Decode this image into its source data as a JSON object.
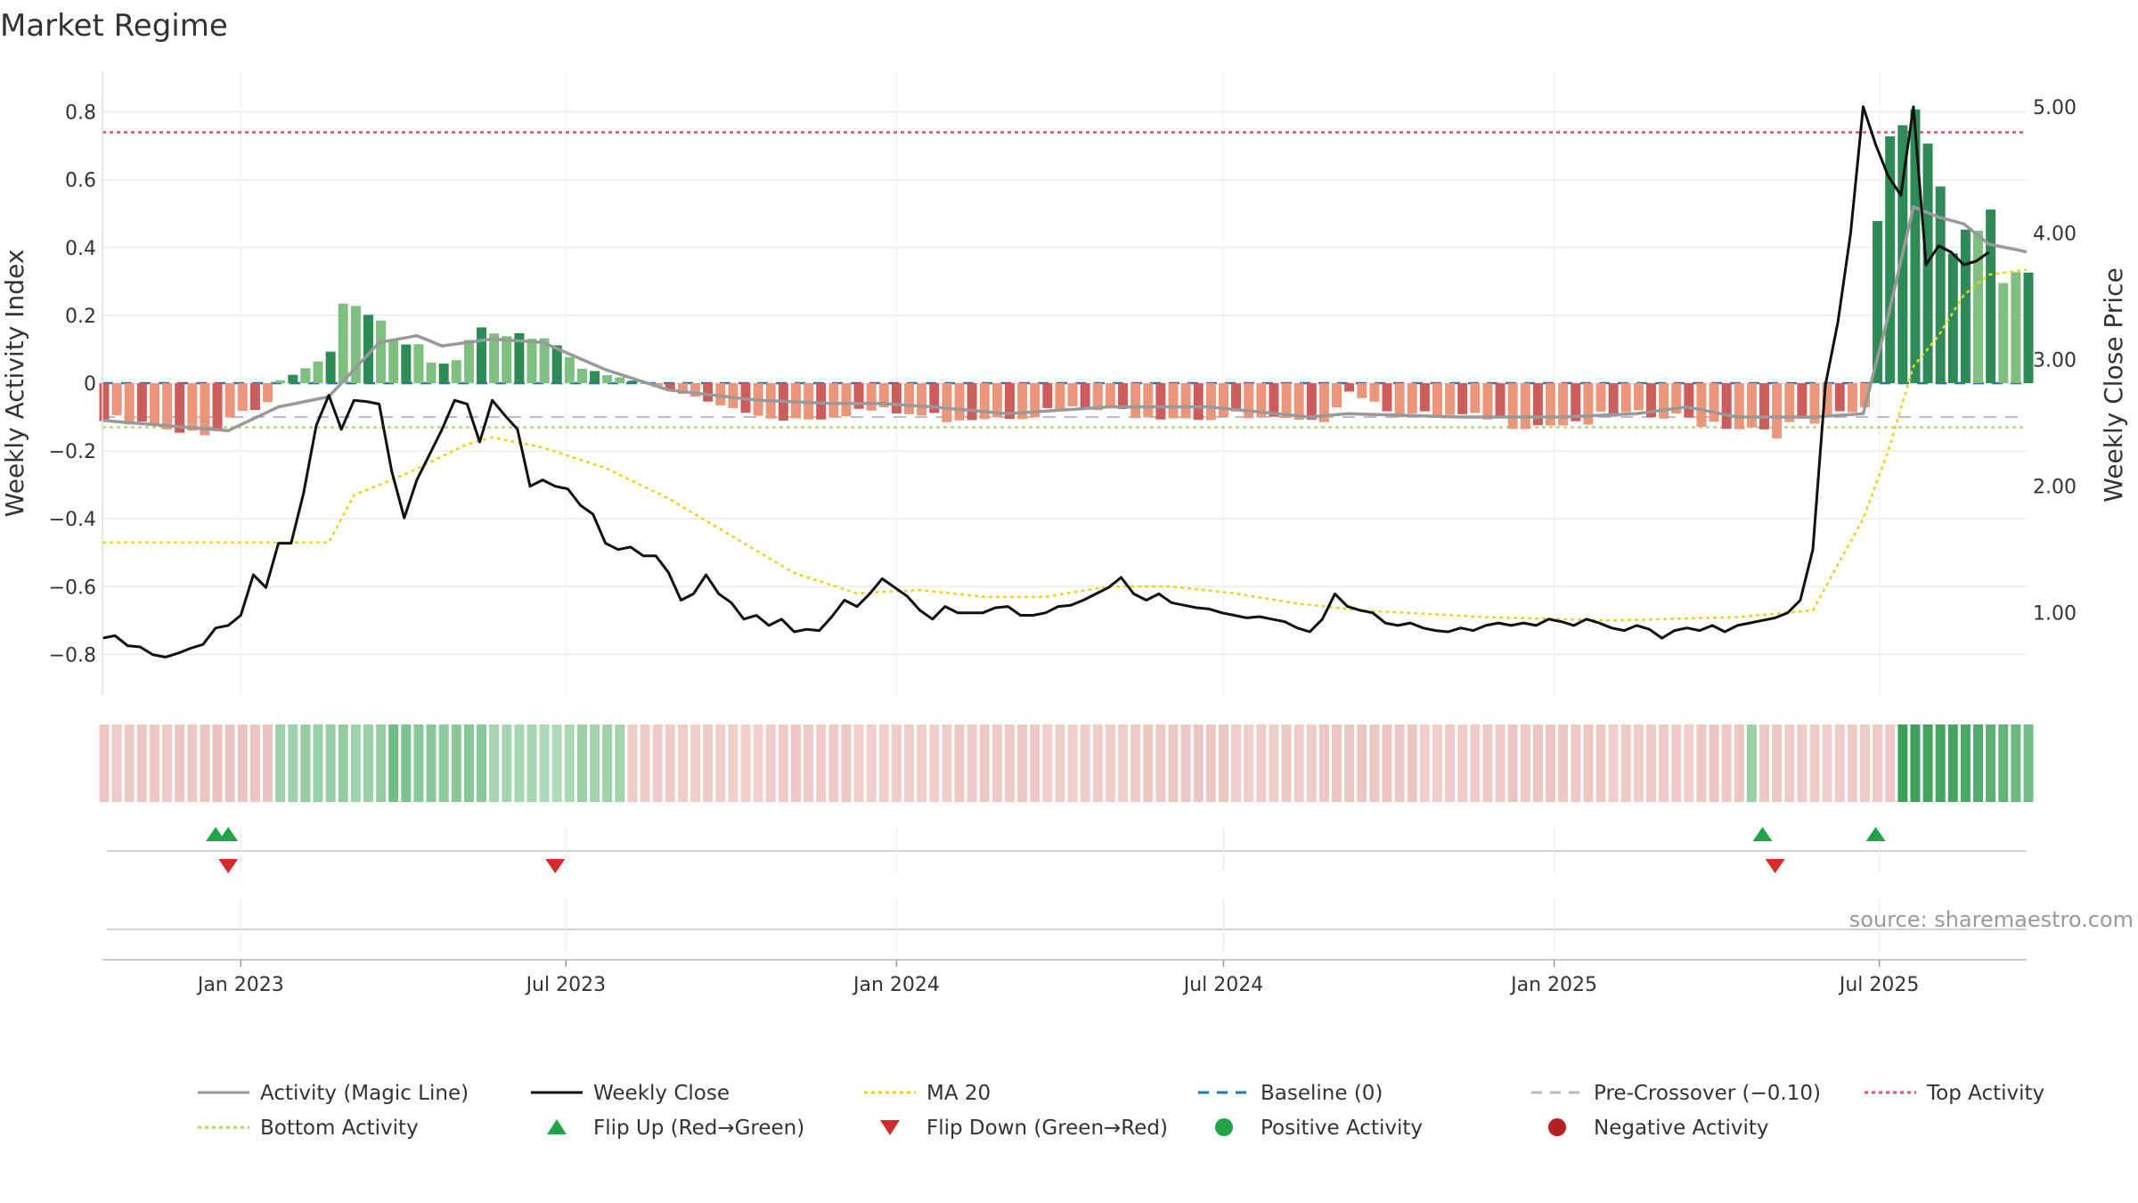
{
  "chart_data": {
    "type": "bar",
    "title": "Market Regime",
    "ylabel": "Weekly Activity Index",
    "ylabel_right": "Weekly Close Price",
    "source": "source: sharemaestro.com",
    "ylim": [
      -0.92,
      0.92
    ],
    "ylim_right": [
      0.35,
      5.28
    ],
    "xlim": [
      "2022-10-16",
      "2025-09-21"
    ],
    "y_ticks": [
      0.8,
      0.6,
      0.4,
      0.2,
      0,
      -0.2,
      -0.4,
      -0.6,
      -0.8
    ],
    "y_tick_labels": [
      "0.8",
      "0.6",
      "0.4",
      "0.2",
      "0",
      "−0.2",
      "−0.4",
      "−0.6",
      "−0.8"
    ],
    "y_right_ticks": [
      5.0,
      4.0,
      3.0,
      2.0,
      1.0
    ],
    "y_right_tick_labels": [
      "5.00",
      "4.00",
      "3.00",
      "2.00",
      "1.00"
    ],
    "x_ticks": [
      "2023-01-01",
      "2023-07-01",
      "2024-01-01",
      "2024-07-01",
      "2025-01-01",
      "2025-07-01"
    ],
    "x_tick_labels": [
      "Jan 2023",
      "Jul 2023",
      "Jan 2024",
      "Jul 2024",
      "Jan 2025",
      "Jul 2025"
    ],
    "reference_lines": {
      "baseline": 0,
      "pre_crossover": -0.1,
      "top_activity": 0.74,
      "bottom_activity": -0.13
    },
    "colors": {
      "pos_strong": "#2e8b57",
      "pos_light": "#7fbf7f",
      "neg_strong": "#cd5c5c",
      "neg_light": "#e9967a",
      "magic": "#999999",
      "close": "#111111",
      "ma": "#f0d020",
      "baseline": "#1f77b4",
      "pre": "#bbbbbb",
      "top": "#e0506a",
      "bottom": "#a8d878",
      "flip_up": "#22a34a",
      "flip_down": "#d42a2a",
      "positive": "#22a34a",
      "negative": "#b22222"
    },
    "activity_anchors": [
      [
        0,
        -0.1
      ],
      [
        2,
        -0.11
      ],
      [
        4,
        -0.12
      ],
      [
        6,
        -0.15
      ],
      [
        7,
        -0.13
      ],
      [
        9,
        -0.11
      ],
      [
        11,
        -0.07
      ],
      [
        13,
        -0.05
      ],
      [
        14,
        0.01
      ],
      [
        16,
        0.04
      ],
      [
        18,
        0.09
      ],
      [
        19,
        0.24
      ],
      [
        21,
        0.2
      ],
      [
        23,
        0.16
      ],
      [
        25,
        0.15
      ],
      [
        26,
        0.08
      ],
      [
        28,
        0.1
      ],
      [
        29,
        0.16
      ],
      [
        31,
        0.14
      ],
      [
        33,
        0.15
      ],
      [
        35,
        0.13
      ],
      [
        37,
        0.07
      ],
      [
        40,
        0.03
      ],
      [
        42,
        0.01
      ],
      [
        45,
        -0.02
      ],
      [
        48,
        -0.05
      ],
      [
        51,
        -0.08
      ],
      [
        55,
        -0.09
      ],
      [
        60,
        -0.07
      ],
      [
        66,
        -0.09
      ],
      [
        72,
        -0.08
      ],
      [
        78,
        -0.07
      ],
      [
        84,
        -0.08
      ],
      [
        90,
        -0.09
      ],
      [
        96,
        -0.12
      ],
      [
        99,
        -0.02
      ],
      [
        104,
        -0.09
      ],
      [
        110,
        -0.1
      ],
      [
        116,
        -0.1
      ],
      [
        122,
        -0.09
      ],
      [
        128,
        -0.1
      ],
      [
        133,
        -0.12
      ],
      [
        136,
        -0.11
      ],
      [
        140,
        -0.07
      ],
      [
        141,
        0.5
      ],
      [
        142,
        0.75
      ],
      [
        143,
        0.78
      ],
      [
        144,
        0.85
      ],
      [
        145,
        0.73
      ],
      [
        146,
        0.6
      ],
      [
        147,
        0.4
      ],
      [
        148,
        0.48
      ],
      [
        149,
        0.45
      ],
      [
        150,
        0.5
      ],
      [
        151,
        0.31
      ],
      [
        152,
        0.34
      ],
      [
        153,
        0.32
      ],
      [
        154,
        0.32
      ]
    ],
    "close_anchors": [
      [
        0,
        0.8
      ],
      [
        1,
        0.82
      ],
      [
        2,
        0.74
      ],
      [
        3,
        0.73
      ],
      [
        4,
        0.67
      ],
      [
        5,
        0.65
      ],
      [
        6,
        0.68
      ],
      [
        7,
        0.72
      ],
      [
        8,
        0.75
      ],
      [
        9,
        0.88
      ],
      [
        10,
        0.9
      ],
      [
        11,
        0.98
      ],
      [
        12,
        1.3
      ],
      [
        13,
        1.2
      ],
      [
        14,
        1.55
      ],
      [
        15,
        1.55
      ],
      [
        16,
        1.95
      ],
      [
        17,
        2.48
      ],
      [
        18,
        2.72
      ],
      [
        19,
        2.45
      ],
      [
        20,
        2.68
      ],
      [
        21,
        2.67
      ],
      [
        22,
        2.65
      ],
      [
        23,
        2.12
      ],
      [
        24,
        1.75
      ],
      [
        25,
        2.05
      ],
      [
        26,
        2.25
      ],
      [
        27,
        2.45
      ],
      [
        28,
        2.68
      ],
      [
        29,
        2.65
      ],
      [
        30,
        2.35
      ],
      [
        31,
        2.68
      ],
      [
        32,
        2.56
      ],
      [
        33,
        2.45
      ],
      [
        34,
        2.0
      ],
      [
        35,
        2.05
      ],
      [
        36,
        2.0
      ],
      [
        37,
        1.98
      ],
      [
        38,
        1.85
      ],
      [
        39,
        1.78
      ],
      [
        40,
        1.55
      ],
      [
        41,
        1.5
      ],
      [
        42,
        1.52
      ],
      [
        43,
        1.45
      ],
      [
        44,
        1.45
      ],
      [
        45,
        1.32
      ],
      [
        46,
        1.1
      ],
      [
        47,
        1.15
      ],
      [
        48,
        1.3
      ],
      [
        49,
        1.15
      ],
      [
        50,
        1.08
      ],
      [
        51,
        0.95
      ],
      [
        52,
        0.98
      ],
      [
        53,
        0.9
      ],
      [
        54,
        0.95
      ],
      [
        55,
        0.85
      ],
      [
        56,
        0.87
      ],
      [
        57,
        0.86
      ],
      [
        58,
        0.97
      ],
      [
        59,
        1.1
      ],
      [
        60,
        1.05
      ],
      [
        61,
        1.15
      ],
      [
        62,
        1.27
      ],
      [
        63,
        1.2
      ],
      [
        64,
        1.13
      ],
      [
        65,
        1.02
      ],
      [
        66,
        0.95
      ],
      [
        67,
        1.05
      ],
      [
        68,
        1.0
      ],
      [
        69,
        1.0
      ],
      [
        70,
        1.0
      ],
      [
        71,
        1.04
      ],
      [
        72,
        1.05
      ],
      [
        73,
        0.98
      ],
      [
        74,
        0.98
      ],
      [
        75,
        1.0
      ],
      [
        76,
        1.05
      ],
      [
        77,
        1.06
      ],
      [
        78,
        1.1
      ],
      [
        79,
        1.15
      ],
      [
        80,
        1.2
      ],
      [
        81,
        1.28
      ],
      [
        82,
        1.15
      ],
      [
        83,
        1.1
      ],
      [
        84,
        1.15
      ],
      [
        85,
        1.08
      ],
      [
        86,
        1.06
      ],
      [
        87,
        1.04
      ],
      [
        88,
        1.03
      ],
      [
        89,
        1.0
      ],
      [
        90,
        0.98
      ],
      [
        91,
        0.96
      ],
      [
        92,
        0.97
      ],
      [
        93,
        0.95
      ],
      [
        94,
        0.93
      ],
      [
        95,
        0.88
      ],
      [
        96,
        0.85
      ],
      [
        97,
        0.95
      ],
      [
        98,
        1.15
      ],
      [
        99,
        1.05
      ],
      [
        100,
        1.02
      ],
      [
        101,
        1.0
      ],
      [
        102,
        0.92
      ],
      [
        103,
        0.9
      ],
      [
        104,
        0.92
      ],
      [
        105,
        0.88
      ],
      [
        106,
        0.86
      ],
      [
        107,
        0.85
      ],
      [
        108,
        0.88
      ],
      [
        109,
        0.86
      ],
      [
        110,
        0.9
      ],
      [
        111,
        0.92
      ],
      [
        112,
        0.9
      ],
      [
        113,
        0.92
      ],
      [
        114,
        0.9
      ],
      [
        115,
        0.95
      ],
      [
        116,
        0.93
      ],
      [
        117,
        0.9
      ],
      [
        118,
        0.95
      ],
      [
        119,
        0.92
      ],
      [
        120,
        0.88
      ],
      [
        121,
        0.86
      ],
      [
        122,
        0.9
      ],
      [
        123,
        0.87
      ],
      [
        124,
        0.8
      ],
      [
        125,
        0.86
      ],
      [
        126,
        0.88
      ],
      [
        127,
        0.86
      ],
      [
        128,
        0.9
      ],
      [
        129,
        0.85
      ],
      [
        130,
        0.9
      ],
      [
        131,
        0.92
      ],
      [
        132,
        0.94
      ],
      [
        133,
        0.96
      ],
      [
        134,
        1.0
      ],
      [
        135,
        1.1
      ],
      [
        136,
        1.5
      ],
      [
        137,
        2.8
      ],
      [
        138,
        3.3
      ],
      [
        139,
        4.0
      ],
      [
        140,
        5.0
      ],
      [
        141,
        4.7
      ],
      [
        142,
        4.45
      ],
      [
        143,
        4.3
      ],
      [
        144,
        5.0
      ],
      [
        145,
        3.75
      ],
      [
        146,
        3.9
      ],
      [
        147,
        3.85
      ],
      [
        148,
        3.75
      ],
      [
        149,
        3.78
      ],
      [
        150,
        3.85
      ]
    ],
    "magic_anchors": [
      [
        0,
        -0.11
      ],
      [
        10,
        -0.14
      ],
      [
        14,
        -0.07
      ],
      [
        18,
        -0.04
      ],
      [
        22,
        0.12
      ],
      [
        25,
        0.14
      ],
      [
        27,
        0.11
      ],
      [
        31,
        0.13
      ],
      [
        35,
        0.12
      ],
      [
        40,
        0.04
      ],
      [
        45,
        -0.02
      ],
      [
        52,
        -0.05
      ],
      [
        58,
        -0.06
      ],
      [
        62,
        -0.06
      ],
      [
        66,
        -0.07
      ],
      [
        72,
        -0.09
      ],
      [
        80,
        -0.07
      ],
      [
        88,
        -0.07
      ],
      [
        96,
        -0.1
      ],
      [
        99,
        -0.09
      ],
      [
        108,
        -0.1
      ],
      [
        116,
        -0.1
      ],
      [
        122,
        -0.09
      ],
      [
        126,
        -0.07
      ],
      [
        130,
        -0.1
      ],
      [
        136,
        -0.1
      ],
      [
        140,
        -0.09
      ],
      [
        142,
        0.2
      ],
      [
        144,
        0.52
      ],
      [
        146,
        0.49
      ],
      [
        148,
        0.47
      ],
      [
        150,
        0.41
      ],
      [
        154,
        0.38
      ]
    ],
    "ma20_anchors": [
      [
        0,
        -0.47
      ],
      [
        18,
        -0.47
      ],
      [
        20,
        -0.33
      ],
      [
        24,
        -0.27
      ],
      [
        29,
        -0.18
      ],
      [
        31,
        -0.16
      ],
      [
        35,
        -0.19
      ],
      [
        40,
        -0.25
      ],
      [
        45,
        -0.34
      ],
      [
        50,
        -0.45
      ],
      [
        55,
        -0.56
      ],
      [
        60,
        -0.62
      ],
      [
        65,
        -0.61
      ],
      [
        70,
        -0.63
      ],
      [
        75,
        -0.63
      ],
      [
        80,
        -0.6
      ],
      [
        85,
        -0.6
      ],
      [
        90,
        -0.62
      ],
      [
        95,
        -0.65
      ],
      [
        100,
        -0.67
      ],
      [
        110,
        -0.69
      ],
      [
        120,
        -0.7
      ],
      [
        130,
        -0.69
      ],
      [
        136,
        -0.67
      ],
      [
        140,
        -0.4
      ],
      [
        142,
        -0.2
      ],
      [
        144,
        0.05
      ],
      [
        146,
        0.14
      ],
      [
        148,
        0.26
      ],
      [
        150,
        0.32
      ],
      [
        154,
        0.34
      ]
    ],
    "regime_strip_anchors": [
      [
        0,
        -0.5
      ],
      [
        13,
        -0.5
      ],
      [
        14,
        0.3
      ],
      [
        15,
        0.3
      ],
      [
        16,
        0.55
      ],
      [
        22,
        0.55
      ],
      [
        35,
        0.3
      ],
      [
        41,
        0.3
      ],
      [
        42,
        -0.35
      ],
      [
        80,
        -0.4
      ],
      [
        96,
        -0.45
      ],
      [
        130,
        -0.42
      ],
      [
        131,
        0.3
      ],
      [
        132,
        -0.4
      ],
      [
        142,
        -0.4
      ],
      [
        143,
        1.0
      ],
      [
        148,
        0.9
      ],
      [
        154,
        0.55
      ]
    ],
    "flips_up": [
      "2022-12-18",
      "2022-12-25",
      "2025-04-27",
      "2025-06-29"
    ],
    "flips_down": [
      "2022-12-25",
      "2023-06-25",
      "2025-05-04"
    ],
    "legend": [
      {
        "label": "Activity (Magic Line)",
        "kind": "line",
        "color": "#999999",
        "dash": ""
      },
      {
        "label": "Weekly Close",
        "kind": "line",
        "color": "#111111",
        "dash": ""
      },
      {
        "label": "MA 20",
        "kind": "line",
        "color": "#f0d020",
        "dash": "4 4"
      },
      {
        "label": "Baseline (0)",
        "kind": "line",
        "color": "#1f77b4",
        "dash": "12 9"
      },
      {
        "label": "Pre-Crossover (−0.10)",
        "kind": "line",
        "color": "#bbbbbb",
        "dash": "12 9"
      },
      {
        "label": "Top Activity",
        "kind": "line",
        "color": "#e0506a",
        "dash": "4 4"
      },
      {
        "label": "Bottom Activity",
        "kind": "line",
        "color": "#a8d878",
        "dash": "4 4"
      },
      {
        "label": "Flip Up (Red→Green)",
        "kind": "tri-up",
        "color": "#22a34a"
      },
      {
        "label": "Flip Down (Green→Red)",
        "kind": "tri-down",
        "color": "#d42a2a"
      },
      {
        "label": "Positive Activity",
        "kind": "dot",
        "color": "#22a34a"
      },
      {
        "label": "Negative Activity",
        "kind": "dot",
        "color": "#b22222"
      }
    ]
  }
}
